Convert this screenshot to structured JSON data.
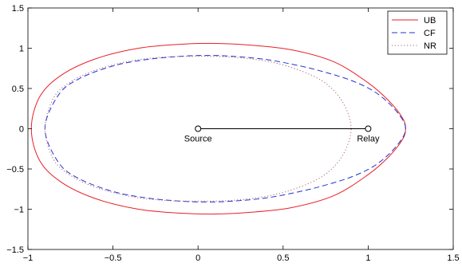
{
  "chart_data": {
    "type": "line",
    "title": "",
    "xlabel": "",
    "ylabel": "",
    "xlim": [
      -1,
      1.5
    ],
    "ylim": [
      -1.5,
      1.5
    ],
    "xticks": [
      -1,
      -0.5,
      0,
      0.5,
      1,
      1.5
    ],
    "xtick_labels": [
      "−1",
      "−0.5",
      "0",
      "0.5",
      "1",
      "1.5"
    ],
    "yticks": [
      -1.5,
      -1,
      -0.5,
      0,
      0.5,
      1,
      1.5
    ],
    "ytick_labels": [
      "−1.5",
      "−1",
      "−0.5",
      "0",
      "0.5",
      "1",
      "1.5"
    ],
    "grid": false,
    "legend_position": "top-right",
    "series": [
      {
        "name": "UB",
        "color": "#e8202a",
        "style": "solid",
        "x": [
          1.22,
          1.2,
          1.12,
          1.0,
          0.8,
          0.55,
          0.3,
          0.1,
          -0.1,
          -0.35,
          -0.6,
          -0.8,
          -0.93,
          -0.98,
          -0.93,
          -0.8,
          -0.6,
          -0.35,
          -0.1,
          0.1,
          0.3,
          0.55,
          0.8,
          1.0,
          1.12,
          1.2,
          1.22
        ],
        "y": [
          0,
          0.14,
          0.35,
          0.57,
          0.83,
          0.98,
          1.04,
          1.06,
          1.05,
          1.0,
          0.87,
          0.67,
          0.4,
          0,
          -0.4,
          -0.67,
          -0.87,
          -1.0,
          -1.05,
          -1.06,
          -1.04,
          -0.98,
          -0.83,
          -0.57,
          -0.35,
          -0.14,
          0
        ]
      },
      {
        "name": "CF",
        "color": "#2233cc",
        "style": "dashed",
        "x": [
          1.22,
          1.2,
          1.13,
          1.03,
          0.9,
          0.75,
          0.6,
          0.4,
          0.2,
          0.05,
          -0.1,
          -0.3,
          -0.5,
          -0.7,
          -0.82,
          -0.9,
          -0.82,
          -0.7,
          -0.5,
          -0.3,
          -0.1,
          0.05,
          0.2,
          0.4,
          0.6,
          0.75,
          0.9,
          1.03,
          1.13,
          1.2,
          1.22
        ],
        "y": [
          0,
          0.12,
          0.3,
          0.47,
          0.6,
          0.7,
          0.78,
          0.86,
          0.9,
          0.91,
          0.9,
          0.86,
          0.78,
          0.62,
          0.42,
          0,
          -0.42,
          -0.62,
          -0.78,
          -0.86,
          -0.9,
          -0.91,
          -0.9,
          -0.86,
          -0.78,
          -0.7,
          -0.6,
          -0.47,
          -0.3,
          -0.12,
          0
        ]
      },
      {
        "name": "NR",
        "color": "#aa6677",
        "style": "dotted",
        "x": [
          0.9,
          0.87,
          0.8,
          0.7,
          0.55,
          0.4,
          0.2,
          0.0,
          -0.2,
          -0.4,
          -0.6,
          -0.75,
          -0.85,
          -0.9,
          -0.85,
          -0.75,
          -0.6,
          -0.4,
          -0.2,
          0.0,
          0.2,
          0.4,
          0.55,
          0.7,
          0.8,
          0.87,
          0.9
        ],
        "y": [
          0,
          0.25,
          0.47,
          0.63,
          0.76,
          0.84,
          0.89,
          0.9,
          0.89,
          0.84,
          0.73,
          0.58,
          0.38,
          0,
          -0.38,
          -0.58,
          -0.73,
          -0.84,
          -0.89,
          -0.9,
          -0.89,
          -0.84,
          -0.76,
          -0.63,
          -0.47,
          -0.25,
          0
        ]
      }
    ],
    "link": {
      "x": [
        0,
        1
      ],
      "y": [
        0,
        0
      ],
      "color": "#000000"
    },
    "annotations": [
      {
        "text": "Source",
        "x": 0,
        "y": 0
      },
      {
        "text": "Relay",
        "x": 1,
        "y": 0
      }
    ]
  }
}
